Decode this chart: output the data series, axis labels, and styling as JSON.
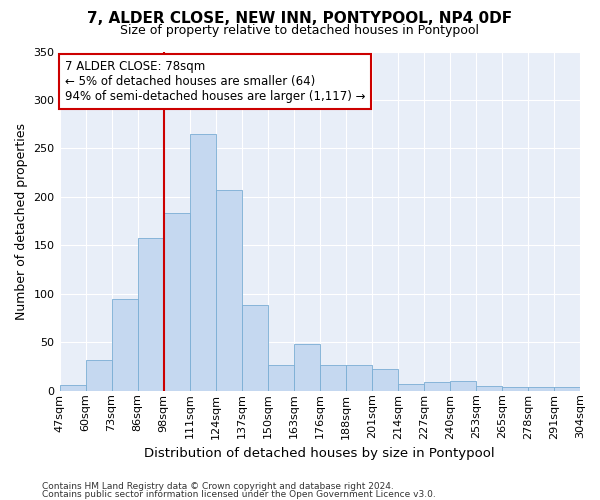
{
  "title": "7, ALDER CLOSE, NEW INN, PONTYPOOL, NP4 0DF",
  "subtitle": "Size of property relative to detached houses in Pontypool",
  "xlabel": "Distribution of detached houses by size in Pontypool",
  "ylabel": "Number of detached properties",
  "bar_values": [
    6,
    32,
    95,
    158,
    183,
    265,
    207,
    88,
    27,
    48,
    27,
    27,
    22,
    7,
    9,
    10,
    5,
    4,
    4,
    4
  ],
  "bar_labels": [
    "47sqm",
    "60sqm",
    "73sqm",
    "86sqm",
    "98sqm",
    "111sqm",
    "124sqm",
    "137sqm",
    "150sqm",
    "163sqm",
    "176sqm",
    "188sqm",
    "201sqm",
    "214sqm",
    "227sqm",
    "240sqm",
    "253sqm",
    "265sqm",
    "278sqm",
    "291sqm",
    "304sqm"
  ],
  "bar_color": "#c5d8f0",
  "bar_edge_color": "#7aadd4",
  "annotation_text_line1": "7 ALDER CLOSE: 78sqm",
  "annotation_text_line2": "← 5% of detached houses are smaller (64)",
  "annotation_text_line3": "94% of semi-detached houses are larger (1,117) →",
  "annotation_box_facecolor": "#ffffff",
  "annotation_box_edgecolor": "#cc0000",
  "red_line_color": "#cc0000",
  "background_color": "#e8eef8",
  "grid_color": "#ffffff",
  "footer_line1": "Contains HM Land Registry data © Crown copyright and database right 2024.",
  "footer_line2": "Contains public sector information licensed under the Open Government Licence v3.0.",
  "ylim": [
    0,
    350
  ],
  "yticks": [
    0,
    50,
    100,
    150,
    200,
    250,
    300,
    350
  ],
  "title_fontsize": 11,
  "subtitle_fontsize": 9,
  "ylabel_fontsize": 9,
  "xlabel_fontsize": 9.5,
  "tick_fontsize": 8,
  "footer_fontsize": 6.5,
  "annot_fontsize": 8.5
}
